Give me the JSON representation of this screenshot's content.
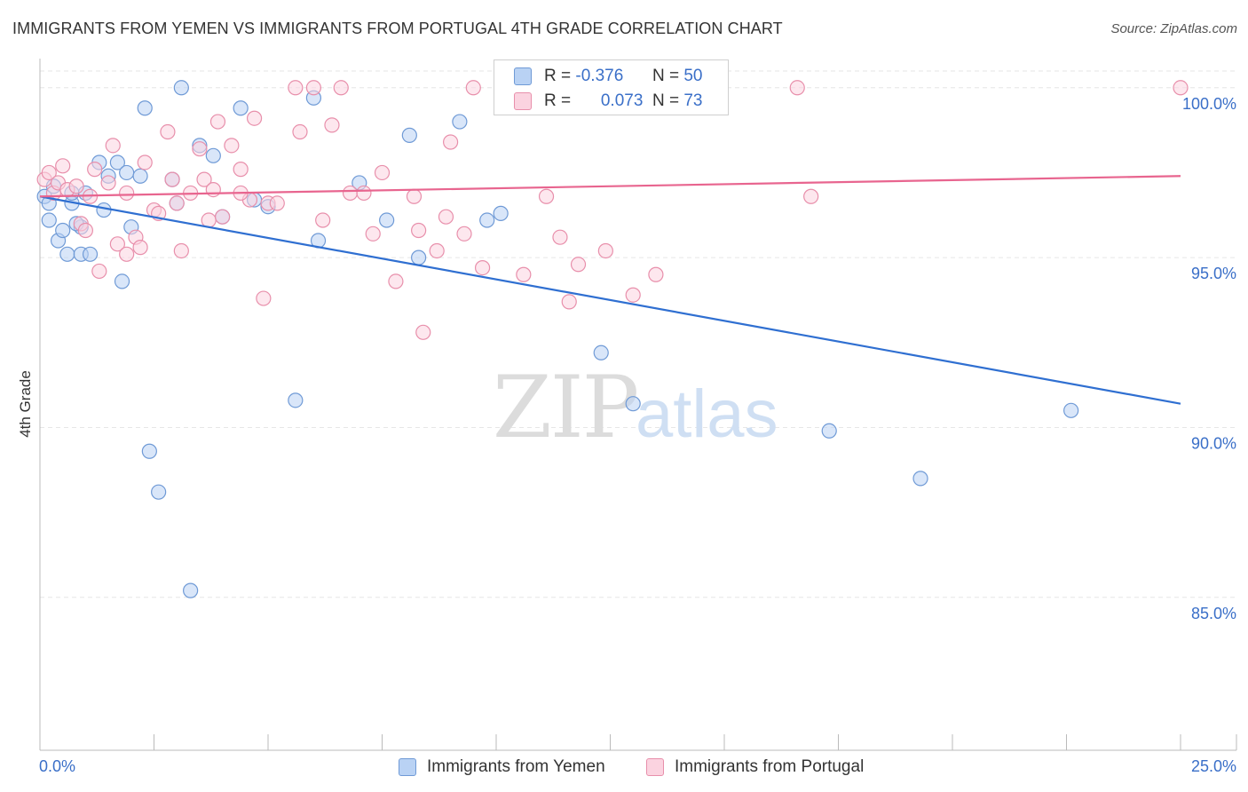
{
  "title": "IMMIGRANTS FROM YEMEN VS IMMIGRANTS FROM PORTUGAL 4TH GRADE CORRELATION CHART",
  "source": "Source: ZipAtlas.com",
  "watermark": {
    "zip": "ZIP",
    "atlas": "atlas"
  },
  "stats": [
    {
      "r_label": "R =",
      "r_value": "-0.376",
      "n_label": "N =",
      "n_value": "50",
      "color": "#a9c6f0",
      "stroke": "#6f9ad6"
    },
    {
      "r_label": "R =",
      "r_value": "0.073",
      "n_label": "N =",
      "n_value": "73",
      "color": "#f7bdd0",
      "stroke": "#e88fab"
    }
  ],
  "legend": [
    {
      "label": "Immigrants from Yemen",
      "color": "#a9c6f0",
      "stroke": "#6f9ad6"
    },
    {
      "label": "Immigrants from Portugal",
      "color": "#f7bdd0",
      "stroke": "#e88fab"
    }
  ],
  "chart_data": {
    "type": "scatter",
    "xlim": [
      0,
      25
    ],
    "ylim": [
      80.5,
      100.7
    ],
    "ylabel": "4th Grade",
    "x_tick_labels": [
      "0.0%",
      "25.0%"
    ],
    "y_ticks": [
      85,
      90,
      95,
      100
    ],
    "y_tick_labels": [
      "85.0%",
      "90.0%",
      "95.0%",
      "100.0%"
    ],
    "grid": true,
    "series": [
      {
        "name": "Immigrants from Yemen",
        "color": "#6f9ad6",
        "fill": "#b9d2f4",
        "line_color": "#2f6fd1",
        "trend": {
          "x": [
            0,
            25
          ],
          "y": [
            96.8,
            90.7
          ]
        },
        "points": [
          [
            0.1,
            96.8
          ],
          [
            0.2,
            96.6
          ],
          [
            0.2,
            96.1
          ],
          [
            0.3,
            97.1
          ],
          [
            0.4,
            95.5
          ],
          [
            0.5,
            95.8
          ],
          [
            0.6,
            95.1
          ],
          [
            0.7,
            96.6
          ],
          [
            0.7,
            96.9
          ],
          [
            0.9,
            95.1
          ],
          [
            0.9,
            95.9
          ],
          [
            1.0,
            96.9
          ],
          [
            1.1,
            95.1
          ],
          [
            1.3,
            97.8
          ],
          [
            1.4,
            96.4
          ],
          [
            1.5,
            97.4
          ],
          [
            1.7,
            97.8
          ],
          [
            1.8,
            94.3
          ],
          [
            1.9,
            97.5
          ],
          [
            2.0,
            95.9
          ],
          [
            2.2,
            97.4
          ],
          [
            2.3,
            99.4
          ],
          [
            2.4,
            89.3
          ],
          [
            2.6,
            88.1
          ],
          [
            2.9,
            97.3
          ],
          [
            3.0,
            96.6
          ],
          [
            3.1,
            100.0
          ],
          [
            3.3,
            85.2
          ],
          [
            3.5,
            98.3
          ],
          [
            3.8,
            98.0
          ],
          [
            4.0,
            96.2
          ],
          [
            4.4,
            99.4
          ],
          [
            4.7,
            96.7
          ],
          [
            5.0,
            96.5
          ],
          [
            5.6,
            90.8
          ],
          [
            6.0,
            99.7
          ],
          [
            6.1,
            95.5
          ],
          [
            7.0,
            97.2
          ],
          [
            7.6,
            96.1
          ],
          [
            8.1,
            98.6
          ],
          [
            8.3,
            95.0
          ],
          [
            9.2,
            99.0
          ],
          [
            9.8,
            96.1
          ],
          [
            10.1,
            96.3
          ],
          [
            12.3,
            92.2
          ],
          [
            13.0,
            90.7
          ],
          [
            17.3,
            89.9
          ],
          [
            19.3,
            88.5
          ],
          [
            22.6,
            90.5
          ],
          [
            0.8,
            96.0
          ]
        ]
      },
      {
        "name": "Immigrants from Portugal",
        "color": "#e88fab",
        "fill": "#fbd3e0",
        "line_color": "#e8658f",
        "trend": {
          "x": [
            0,
            25
          ],
          "y": [
            96.8,
            97.4
          ]
        },
        "points": [
          [
            0.1,
            97.3
          ],
          [
            0.2,
            97.5
          ],
          [
            0.3,
            96.9
          ],
          [
            0.4,
            97.2
          ],
          [
            0.5,
            97.7
          ],
          [
            0.6,
            97.0
          ],
          [
            0.8,
            97.1
          ],
          [
            0.9,
            96.0
          ],
          [
            1.0,
            95.8
          ],
          [
            1.1,
            96.8
          ],
          [
            1.2,
            97.6
          ],
          [
            1.3,
            94.6
          ],
          [
            1.5,
            97.2
          ],
          [
            1.6,
            98.3
          ],
          [
            1.7,
            95.4
          ],
          [
            1.9,
            96.9
          ],
          [
            1.9,
            95.1
          ],
          [
            2.1,
            95.6
          ],
          [
            2.2,
            95.3
          ],
          [
            2.3,
            97.8
          ],
          [
            2.5,
            96.4
          ],
          [
            2.6,
            96.3
          ],
          [
            2.8,
            98.7
          ],
          [
            2.9,
            97.3
          ],
          [
            3.0,
            96.6
          ],
          [
            3.1,
            95.2
          ],
          [
            3.3,
            96.9
          ],
          [
            3.5,
            98.2
          ],
          [
            3.6,
            97.3
          ],
          [
            3.7,
            96.1
          ],
          [
            3.8,
            97.0
          ],
          [
            3.9,
            99.0
          ],
          [
            4.0,
            96.2
          ],
          [
            4.2,
            98.3
          ],
          [
            4.4,
            97.6
          ],
          [
            4.6,
            96.7
          ],
          [
            4.7,
            99.1
          ],
          [
            4.9,
            93.8
          ],
          [
            5.0,
            96.6
          ],
          [
            5.2,
            96.6
          ],
          [
            5.6,
            100.0
          ],
          [
            5.7,
            98.7
          ],
          [
            6.0,
            100.0
          ],
          [
            6.2,
            96.1
          ],
          [
            6.4,
            98.9
          ],
          [
            6.6,
            100.0
          ],
          [
            6.8,
            96.9
          ],
          [
            7.1,
            96.9
          ],
          [
            7.3,
            95.7
          ],
          [
            7.5,
            97.5
          ],
          [
            7.8,
            94.3
          ],
          [
            8.2,
            96.8
          ],
          [
            8.3,
            95.8
          ],
          [
            8.4,
            92.8
          ],
          [
            8.7,
            95.2
          ],
          [
            8.9,
            96.2
          ],
          [
            9.0,
            98.4
          ],
          [
            9.3,
            95.7
          ],
          [
            9.5,
            100.0
          ],
          [
            9.7,
            94.7
          ],
          [
            10.6,
            94.5
          ],
          [
            11.1,
            96.8
          ],
          [
            11.4,
            95.6
          ],
          [
            11.6,
            93.7
          ],
          [
            11.8,
            94.8
          ],
          [
            12.4,
            95.2
          ],
          [
            13.0,
            93.9
          ],
          [
            13.5,
            94.5
          ],
          [
            14.3,
            100.0
          ],
          [
            16.6,
            100.0
          ],
          [
            16.9,
            96.8
          ],
          [
            25.0,
            100.0
          ],
          [
            4.4,
            96.9
          ]
        ]
      }
    ]
  }
}
